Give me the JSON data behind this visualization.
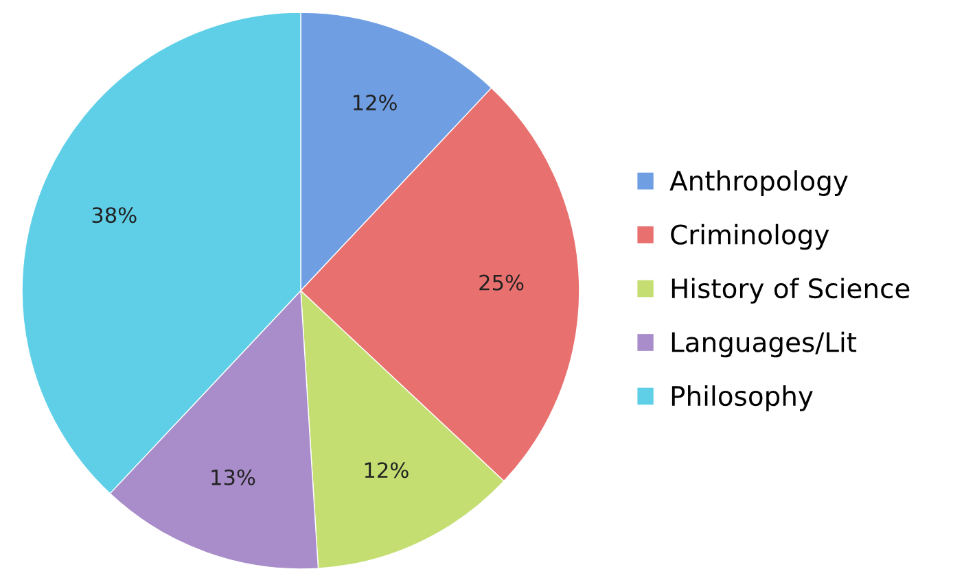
{
  "chart_data": {
    "type": "pie",
    "categories": [
      "Anthropology",
      "Criminology",
      "History of Science",
      "Languages/Lit",
      "Philosophy"
    ],
    "values": [
      12,
      25,
      12,
      13,
      38
    ],
    "colors": [
      "#6f9fe2",
      "#e8716f",
      "#c4de72",
      "#a98dca",
      "#5fcfe8"
    ],
    "value_labels": [
      "12%",
      "25%",
      "12%",
      "13%",
      "38%"
    ],
    "legend": "right"
  }
}
